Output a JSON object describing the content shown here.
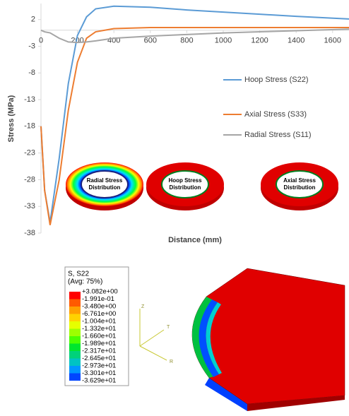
{
  "chart_data": {
    "type": "line",
    "x_label": "Distance (mm)",
    "y_label": "Stress (MPa)",
    "xlim": [
      0,
      1690
    ],
    "ylim": [
      -38,
      5
    ],
    "xticks": [
      0,
      200,
      400,
      600,
      800,
      1000,
      1200,
      1400,
      1600
    ],
    "yticks": [
      2,
      -3,
      -8,
      -13,
      -18,
      -23,
      -28,
      -33,
      -38
    ],
    "x": [
      0,
      20,
      50,
      100,
      150,
      200,
      250,
      300,
      400,
      600,
      800,
      1000,
      1200,
      1400,
      1690
    ],
    "series": [
      {
        "name": "Hoop Stress (S22)",
        "color": "#5b9bd5",
        "values": [
          -18,
          -30,
          -36,
          -24,
          -10,
          -1,
          2.5,
          4,
          4.5,
          4.3,
          3.8,
          3.4,
          3,
          2.6,
          2.1
        ]
      },
      {
        "name": "Axial Stress (S33)",
        "color": "#ed7d31",
        "values": [
          -18,
          -30,
          -36.5,
          -28,
          -15,
          -6,
          -1.5,
          -0.3,
          0.3,
          0.5,
          0.5,
          0.5,
          0.5,
          0.5,
          0.5
        ]
      },
      {
        "name": "Radial Stress (S11)",
        "color": "#a5a5a5",
        "values": [
          0,
          -0.3,
          -0.5,
          -1.5,
          -2.2,
          -2.3,
          -2.2,
          -2,
          -1.5,
          -1.1,
          -0.8,
          -0.5,
          -0.3,
          -0.1,
          0.2
        ]
      }
    ],
    "annotations": [
      [
        "Radial Stress",
        "Distribution"
      ],
      [
        "Hoop Stress",
        "Distribution"
      ],
      [
        "Axial Stress",
        "Distribution"
      ]
    ]
  },
  "contour_legend": {
    "title": "S, S22",
    "subtitle": "(Avg: 75%)",
    "levels": [
      "+3.082e+00",
      "-1.991e-01",
      "-3.480e+00",
      "-6.761e+00",
      "-1.004e+01",
      "-1.332e+01",
      "-1.660e+01",
      "-1.989e+01",
      "-2.317e+01",
      "-2.645e+01",
      "-2.973e+01",
      "-3.301e+01",
      "-3.629e+01"
    ],
    "colors": [
      "#ff0000",
      "#ff5a00",
      "#ff9f00",
      "#ffd200",
      "#e6ff00",
      "#9eff00",
      "#4cff00",
      "#00e62e",
      "#00d27a",
      "#00c3c3",
      "#0096ff",
      "#0046ff"
    ],
    "triad": [
      "Z",
      "T",
      "R"
    ]
  }
}
